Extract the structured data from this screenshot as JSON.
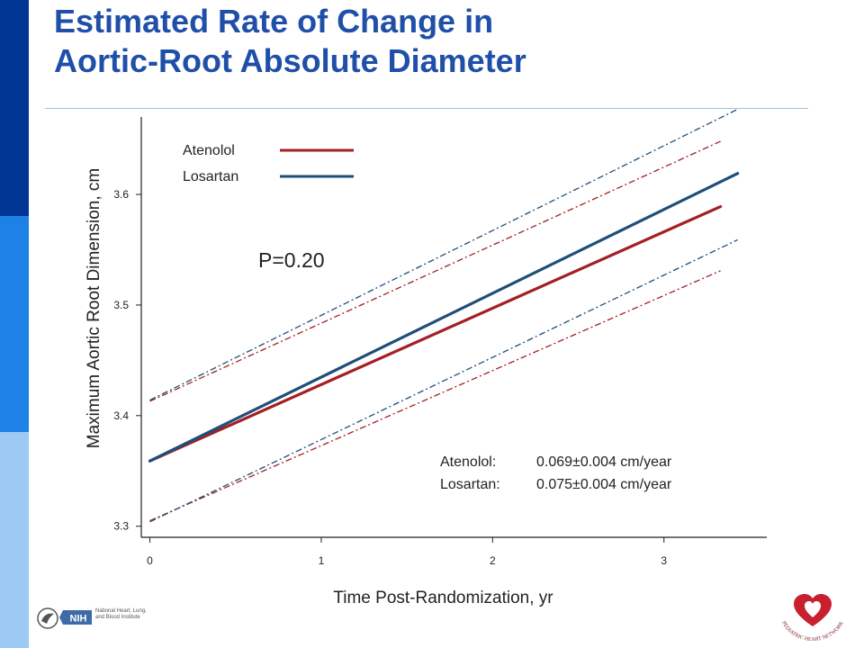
{
  "slide": {
    "title_lines": [
      "Estimated Rate of Change in",
      "Aortic-Root Absolute Diameter"
    ],
    "colors": {
      "title": "#1f4fa8",
      "left_bar_dark": "#003594",
      "left_bar_mid": "#1d81e6",
      "left_bar_light": "#9ccaf5",
      "rule": "#9ac3e6"
    }
  },
  "chart_data": {
    "type": "line",
    "title": "",
    "xlabel": "Time Post-Randomization, yr",
    "ylabel": "Maximum Aortic Root Dimension, cm",
    "xlim": [
      -0.05,
      3.6
    ],
    "ylim": [
      3.29,
      3.67
    ],
    "xticks": [
      0,
      1,
      2,
      3
    ],
    "yticks": [
      3.3,
      3.4,
      3.5,
      3.6
    ],
    "xtick_labels": [
      "0",
      "1",
      "2",
      "3"
    ],
    "ytick_labels": [
      "3.3",
      "3.4",
      "3.5",
      "3.6"
    ],
    "grid": false,
    "legend_position": "top-left",
    "series": [
      {
        "name": "Atenolol",
        "color": "#a31f24",
        "x": [
          0,
          3.33
        ],
        "y": [
          3.359,
          3.589
        ],
        "ci_upper": [
          3.413,
          3.648
        ],
        "ci_lower": [
          3.305,
          3.531
        ]
      },
      {
        "name": "Losartan",
        "color": "#1f4e79",
        "x": [
          0,
          3.43
        ],
        "y": [
          3.359,
          3.619
        ],
        "ci_upper": [
          3.414,
          3.677
        ],
        "ci_lower": [
          3.304,
          3.559
        ]
      }
    ],
    "annotations": {
      "p_value": "P=0.20",
      "rates": [
        {
          "label": "Atenolol:",
          "value": "0.069±0.004 cm/year"
        },
        {
          "label": "Losartan:",
          "value": "0.075±0.004 cm/year"
        }
      ]
    }
  },
  "footer": {
    "nih_label": "NIH",
    "nih_text": [
      "National Heart, Lung,",
      "and Blood Institute"
    ],
    "phn_text": "PEDIATRIC HEART NETWORK",
    "colors": {
      "heart": "#c8202f",
      "nih_box": "#3e6aa8"
    }
  }
}
